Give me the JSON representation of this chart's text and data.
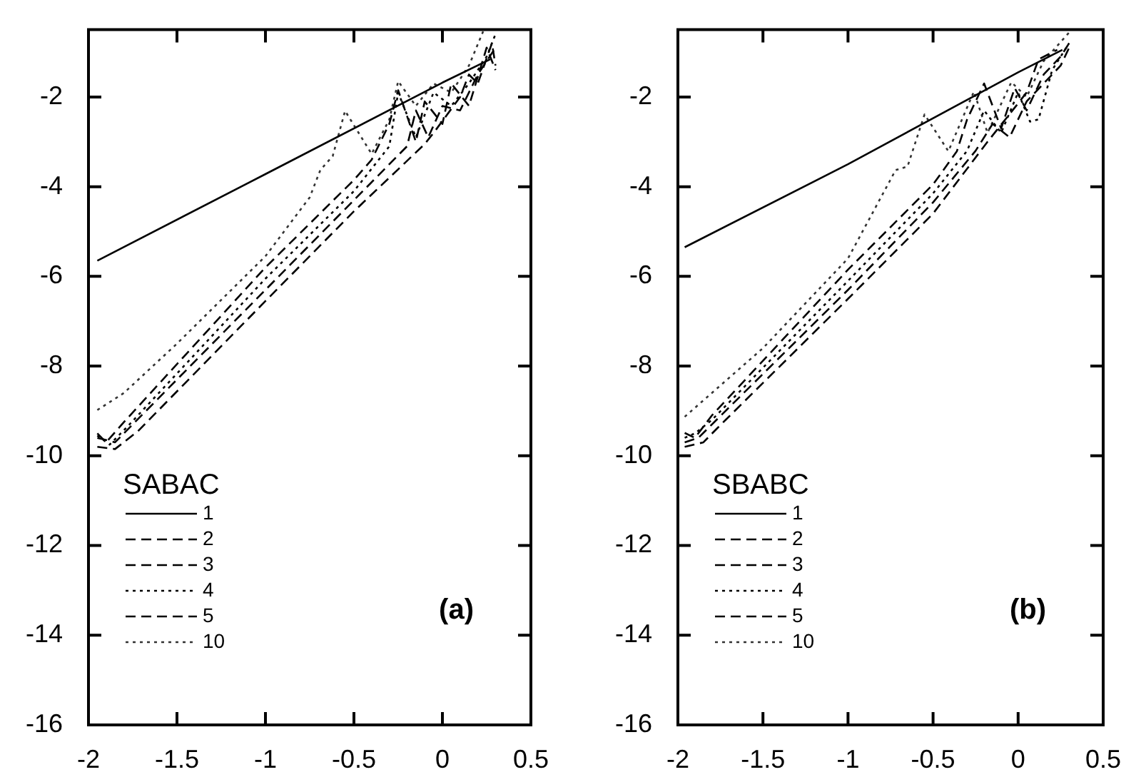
{
  "chart_data": [
    {
      "type": "line",
      "xlim": [
        -2,
        0.5
      ],
      "xticks": [
        -2,
        -1.5,
        -1,
        -0.5,
        0,
        0.5
      ],
      "ylim": [
        -16,
        -0.5
      ],
      "yticks": [
        -16,
        -14,
        -12,
        -10,
        -8,
        -6,
        -4,
        -2
      ],
      "grid": false,
      "marker": "none",
      "legend": "bottom left",
      "legend_title": "SABAC",
      "annotations": [
        "(a)"
      ],
      "series": [
        {
          "name": "1",
          "color": "#000000",
          "line_style": "solid",
          "x": [
            -1.95,
            -1.0,
            0,
            0.27
          ],
          "values": [
            -5.65,
            -3.72,
            -1.68,
            -1.16
          ]
        },
        {
          "name": "2",
          "color": "#000000",
          "line_style": "dashed",
          "x": [
            -1.95,
            -1.85,
            -1.72,
            -1.0,
            -0.5,
            -0.1,
            -0.04,
            0.1,
            0.15,
            0.2,
            0.28,
            0.3
          ],
          "values": [
            -9.8,
            -9.85,
            -9.45,
            -6.55,
            -4.55,
            -3.05,
            -2.75,
            -2.0,
            -1.5,
            -1.7,
            -0.8,
            -1.3
          ]
        },
        {
          "name": "3",
          "color": "#000000",
          "line_style": "dashed",
          "x": [
            -1.95,
            -1.85,
            -1.75,
            -1.0,
            -0.5,
            -0.2,
            -0.15,
            -0.08,
            0.0,
            0.1,
            0.2,
            0.3
          ],
          "values": [
            -9.6,
            -9.7,
            -9.3,
            -6.3,
            -4.3,
            -3.1,
            -2.3,
            -2.9,
            -2.2,
            -2.3,
            -1.5,
            -0.9
          ]
        },
        {
          "name": "4",
          "color": "#000000",
          "line_style": "dotted",
          "x": [
            -1.95,
            -1.88,
            -1.78,
            -1.0,
            -0.5,
            -0.3,
            -0.25,
            -0.15,
            -0.05,
            0.05,
            0.15,
            0.25,
            0.3
          ],
          "values": [
            -9.55,
            -9.75,
            -9.35,
            -6.05,
            -4.1,
            -3.1,
            -1.9,
            -2.9,
            -1.9,
            -2.2,
            -1.7,
            -1.1,
            -0.6
          ]
        },
        {
          "name": "5",
          "color": "#000000",
          "line_style": "dashed",
          "x": [
            -1.95,
            -1.9,
            -1.8,
            -1.0,
            -0.5,
            -0.4,
            -0.3,
            -0.25,
            -0.15,
            -0.1,
            0.0,
            0.05,
            0.15,
            0.25,
            0.3
          ],
          "values": [
            -9.5,
            -9.7,
            -9.25,
            -5.8,
            -3.85,
            -3.4,
            -2.6,
            -1.85,
            -3.0,
            -2.1,
            -2.6,
            -1.7,
            -2.2,
            -0.9,
            -1.4
          ]
        },
        {
          "name": "10",
          "color": "#333333",
          "line_style": "dotted",
          "x": [
            -1.95,
            -1.8,
            -1.5,
            -1.0,
            -0.75,
            -0.69,
            -0.62,
            -0.55,
            -0.4,
            -0.3,
            -0.25,
            -0.15,
            -0.05,
            0.05,
            0.15,
            0.23
          ],
          "values": [
            -8.98,
            -8.6,
            -7.5,
            -5.55,
            -4.24,
            -3.63,
            -3.32,
            -2.31,
            -3.27,
            -2.5,
            -1.65,
            -2.2,
            -1.7,
            -1.9,
            -1.3,
            -0.54
          ]
        }
      ]
    },
    {
      "type": "line",
      "xlim": [
        -2,
        0.5
      ],
      "xticks": [
        -2,
        -1.5,
        -1,
        -0.5,
        0,
        0.5
      ],
      "ylim": [
        -16,
        -0.5
      ],
      "yticks": [
        -16,
        -14,
        -12,
        -10,
        -8,
        -6,
        -4,
        -2
      ],
      "grid": false,
      "marker": "none",
      "legend": "bottom left",
      "legend_title": "SBABC",
      "annotations": [
        "(b)"
      ],
      "series": [
        {
          "name": "1",
          "color": "#000000",
          "line_style": "solid",
          "x": [
            -1.96,
            -1.0,
            0,
            0.26
          ],
          "values": [
            -5.35,
            -3.5,
            -1.45,
            -0.95
          ]
        },
        {
          "name": "2",
          "color": "#000000",
          "line_style": "dashed",
          "x": [
            -1.96,
            -1.85,
            -1.77,
            -1.0,
            -0.5,
            -0.18,
            -0.01,
            0.05,
            0.12,
            0.23
          ],
          "values": [
            -9.8,
            -9.7,
            -9.39,
            -6.5,
            -4.6,
            -3.0,
            -2.19,
            -1.9,
            -1.16,
            -0.95
          ]
        },
        {
          "name": "3",
          "color": "#000000",
          "line_style": "dashed",
          "x": [
            -1.96,
            -1.88,
            -1.8,
            -1.0,
            -0.5,
            -0.25,
            -0.15,
            -0.05,
            0.05,
            0.15,
            0.25,
            0.3
          ],
          "values": [
            -9.7,
            -9.6,
            -9.3,
            -6.3,
            -4.35,
            -3.2,
            -2.6,
            -2.9,
            -2.1,
            -1.7,
            -1.3,
            -0.9
          ]
        },
        {
          "name": "4",
          "color": "#000000",
          "line_style": "dotted",
          "x": [
            -1.96,
            -1.9,
            -1.8,
            -1.0,
            -0.5,
            -0.3,
            -0.2,
            -0.1,
            0.0,
            0.07,
            0.12,
            0.2,
            0.3
          ],
          "values": [
            -9.6,
            -9.5,
            -9.2,
            -6.1,
            -4.15,
            -3.2,
            -2.3,
            -2.8,
            -1.9,
            -2.55,
            -2.5,
            -1.4,
            -0.8
          ]
        },
        {
          "name": "5",
          "color": "#000000",
          "line_style": "dashed",
          "x": [
            -1.96,
            -1.9,
            -1.8,
            -1.0,
            -0.5,
            -0.36,
            -0.3,
            -0.2,
            -0.1,
            -0.02,
            0.05,
            0.15,
            0.25,
            0.3
          ],
          "values": [
            -9.49,
            -9.6,
            -9.1,
            -5.85,
            -3.95,
            -3.21,
            -2.5,
            -1.7,
            -2.7,
            -1.8,
            -2.3,
            -1.5,
            -1.1,
            -0.8
          ]
        },
        {
          "name": "10",
          "color": "#333333",
          "line_style": "dotted",
          "x": [
            -1.96,
            -1.5,
            -1.0,
            -0.72,
            -0.65,
            -0.55,
            -0.41,
            -0.26,
            -0.18,
            -0.04,
            0.05,
            0.15,
            0.31
          ],
          "values": [
            -9.13,
            -7.6,
            -5.6,
            -3.63,
            -3.55,
            -2.39,
            -3.21,
            -1.88,
            -2.8,
            -1.67,
            -2.0,
            -1.2,
            -0.52
          ]
        }
      ]
    }
  ]
}
